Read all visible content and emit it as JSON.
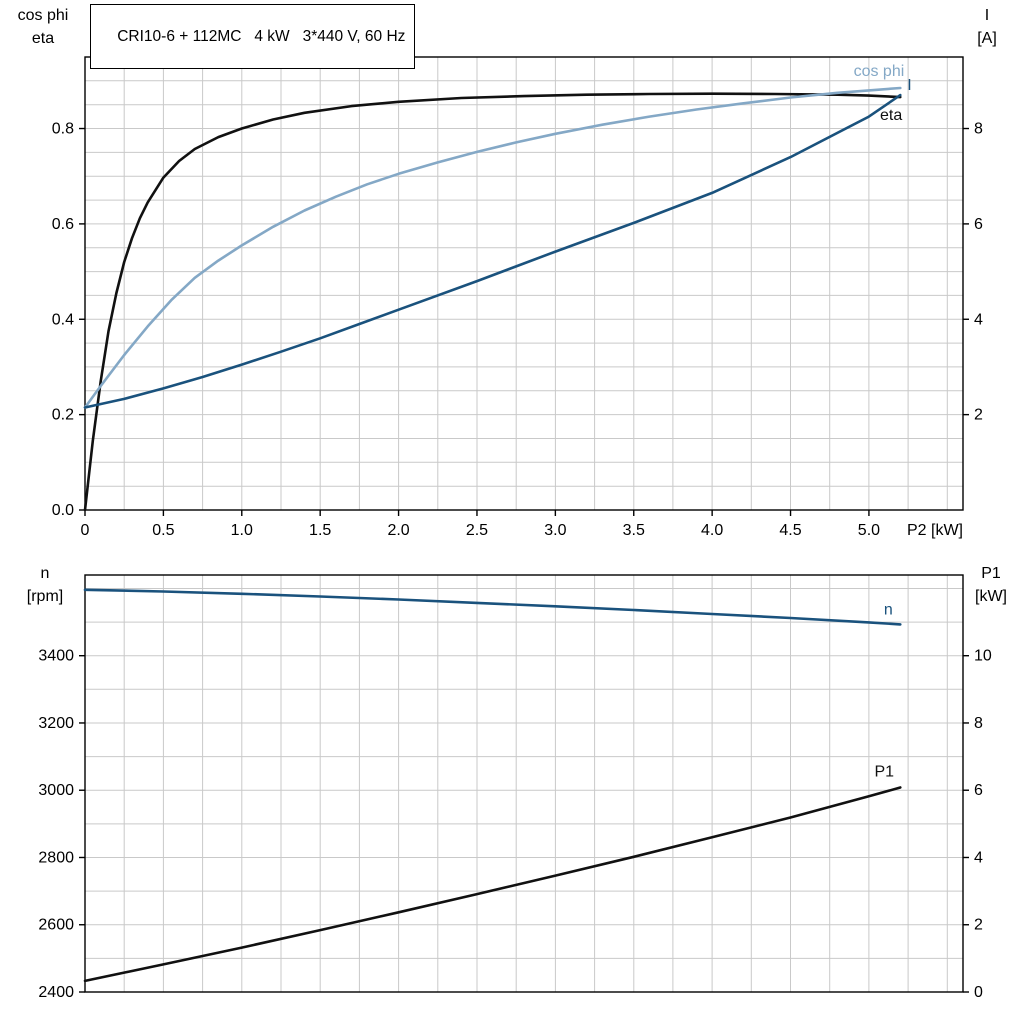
{
  "title": "CRI10-6 + 112MC   4 kW   3*440 V, 60 Hz",
  "style": {
    "background": "#ffffff",
    "grid_color": "#c9c9c9",
    "axis_color": "#000000",
    "text_color": "#000000",
    "eta_color": "#111111",
    "cos_phi_color": "#84a8c6",
    "current_color": "#1a527d",
    "speed_color": "#1a527d",
    "p1_color": "#111111"
  },
  "chart_data": [
    {
      "type": "line",
      "title": "CRI10-6 + 112MC   4 kW   3*440 V, 60 Hz",
      "legend_position": "curve-end-labels",
      "grid": true,
      "x": {
        "min": 0,
        "max": 5.6,
        "grid_step": 0.25,
        "label": "P2 [kW]",
        "ticks": [
          {
            "v": 0,
            "label": "0"
          },
          {
            "v": 0.5,
            "label": "0.5"
          },
          {
            "v": 1,
            "label": "1.0"
          },
          {
            "v": 1.5,
            "label": "1.5"
          },
          {
            "v": 2,
            "label": "2.0"
          },
          {
            "v": 2.5,
            "label": "2.5"
          },
          {
            "v": 3,
            "label": "3.0"
          },
          {
            "v": 3.5,
            "label": "3.5"
          },
          {
            "v": 4,
            "label": "4.0"
          },
          {
            "v": 4.5,
            "label": "4.5"
          },
          {
            "v": 5,
            "label": "5.0"
          }
        ]
      },
      "y_left": {
        "min": 0,
        "max": 0.95,
        "grid_step": 0.05,
        "corner_lines": [
          "cos phi",
          "eta"
        ],
        "ticks": [
          {
            "v": 0,
            "label": "0.0"
          },
          {
            "v": 0.2,
            "label": "0.2"
          },
          {
            "v": 0.4,
            "label": "0.4"
          },
          {
            "v": 0.6,
            "label": "0.6"
          },
          {
            "v": 0.8,
            "label": "0.8"
          }
        ]
      },
      "y_right": {
        "min": 0,
        "max": 9.5,
        "corner_lines": [
          "I",
          "[A]"
        ],
        "ticks": [
          {
            "v": 2,
            "label": "2"
          },
          {
            "v": 4,
            "label": "4"
          },
          {
            "v": 6,
            "label": "6"
          },
          {
            "v": 8,
            "label": "8"
          }
        ]
      },
      "series": [
        {
          "name": "eta",
          "axis": "left",
          "color": "#111111",
          "x": [
            0,
            0.05,
            0.1,
            0.15,
            0.2,
            0.25,
            0.3,
            0.35,
            0.4,
            0.5,
            0.6,
            0.7,
            0.85,
            1.0,
            1.2,
            1.4,
            1.7,
            2.0,
            2.4,
            2.8,
            3.2,
            3.6,
            4.0,
            4.4,
            4.8,
            5.0,
            5.2
          ],
          "y": [
            0,
            0.145,
            0.27,
            0.375,
            0.455,
            0.52,
            0.57,
            0.612,
            0.645,
            0.697,
            0.732,
            0.757,
            0.782,
            0.8,
            0.819,
            0.833,
            0.847,
            0.856,
            0.864,
            0.868,
            0.871,
            0.8725,
            0.873,
            0.8725,
            0.871,
            0.869,
            0.866
          ]
        },
        {
          "name": "cos phi",
          "axis": "left",
          "color": "#84a8c6",
          "x": [
            0,
            0.1,
            0.25,
            0.4,
            0.55,
            0.7,
            0.85,
            1.0,
            1.2,
            1.4,
            1.6,
            1.8,
            2.0,
            2.25,
            2.5,
            2.75,
            3.0,
            3.3,
            3.6,
            3.9,
            4.2,
            4.5,
            4.8,
            5.0,
            5.2
          ],
          "y": [
            0.215,
            0.26,
            0.325,
            0.385,
            0.44,
            0.487,
            0.523,
            0.555,
            0.594,
            0.628,
            0.657,
            0.683,
            0.705,
            0.729,
            0.751,
            0.771,
            0.789,
            0.808,
            0.825,
            0.84,
            0.853,
            0.865,
            0.875,
            0.88,
            0.885
          ]
        },
        {
          "name": "I",
          "axis": "right",
          "color": "#1a527d",
          "x": [
            0,
            0.25,
            0.5,
            0.75,
            1.0,
            1.25,
            1.5,
            1.75,
            2.0,
            2.5,
            3.0,
            3.5,
            4.0,
            4.5,
            5.0,
            5.2
          ],
          "y": [
            2.15,
            2.33,
            2.55,
            2.79,
            3.05,
            3.32,
            3.6,
            3.9,
            4.2,
            4.8,
            5.42,
            6.02,
            6.65,
            7.4,
            8.25,
            8.7
          ]
        }
      ]
    },
    {
      "type": "line",
      "title": "",
      "legend_position": "curve-end-labels",
      "grid": true,
      "x": {
        "min": 0,
        "max": 5.6,
        "grid_step": 0.25,
        "label": "",
        "ticks": []
      },
      "y_left": {
        "min": 2400,
        "max": 3640,
        "grid_step": 100,
        "corner_lines": [
          "n",
          "[rpm]"
        ],
        "ticks": [
          {
            "v": 2400,
            "label": "2400"
          },
          {
            "v": 2600,
            "label": "2600"
          },
          {
            "v": 2800,
            "label": "2800"
          },
          {
            "v": 3000,
            "label": "3000"
          },
          {
            "v": 3200,
            "label": "3200"
          },
          {
            "v": 3400,
            "label": "3400"
          }
        ]
      },
      "y_right": {
        "min": 0,
        "max": 12.4,
        "corner_lines": [
          "P1",
          "[kW]"
        ],
        "ticks": [
          {
            "v": 0,
            "label": "0"
          },
          {
            "v": 2,
            "label": "2"
          },
          {
            "v": 4,
            "label": "4"
          },
          {
            "v": 6,
            "label": "6"
          },
          {
            "v": 8,
            "label": "8"
          },
          {
            "v": 10,
            "label": "10"
          }
        ]
      },
      "series": [
        {
          "name": "n",
          "axis": "left",
          "color": "#1a527d",
          "x": [
            0,
            0.5,
            1,
            1.5,
            2,
            2.5,
            3,
            3.5,
            4,
            4.5,
            5,
            5.2
          ],
          "y": [
            3596,
            3591,
            3584,
            3576,
            3567,
            3557,
            3547,
            3536,
            3524,
            3512,
            3499,
            3493
          ]
        },
        {
          "name": "P1",
          "axis": "right",
          "color": "#111111",
          "x": [
            0,
            0.5,
            1,
            1.5,
            2,
            2.5,
            3,
            3.5,
            4,
            4.5,
            5,
            5.2
          ],
          "y": [
            0.33,
            0.82,
            1.32,
            1.84,
            2.37,
            2.91,
            3.46,
            4.02,
            4.6,
            5.19,
            5.82,
            6.08
          ]
        }
      ]
    }
  ]
}
